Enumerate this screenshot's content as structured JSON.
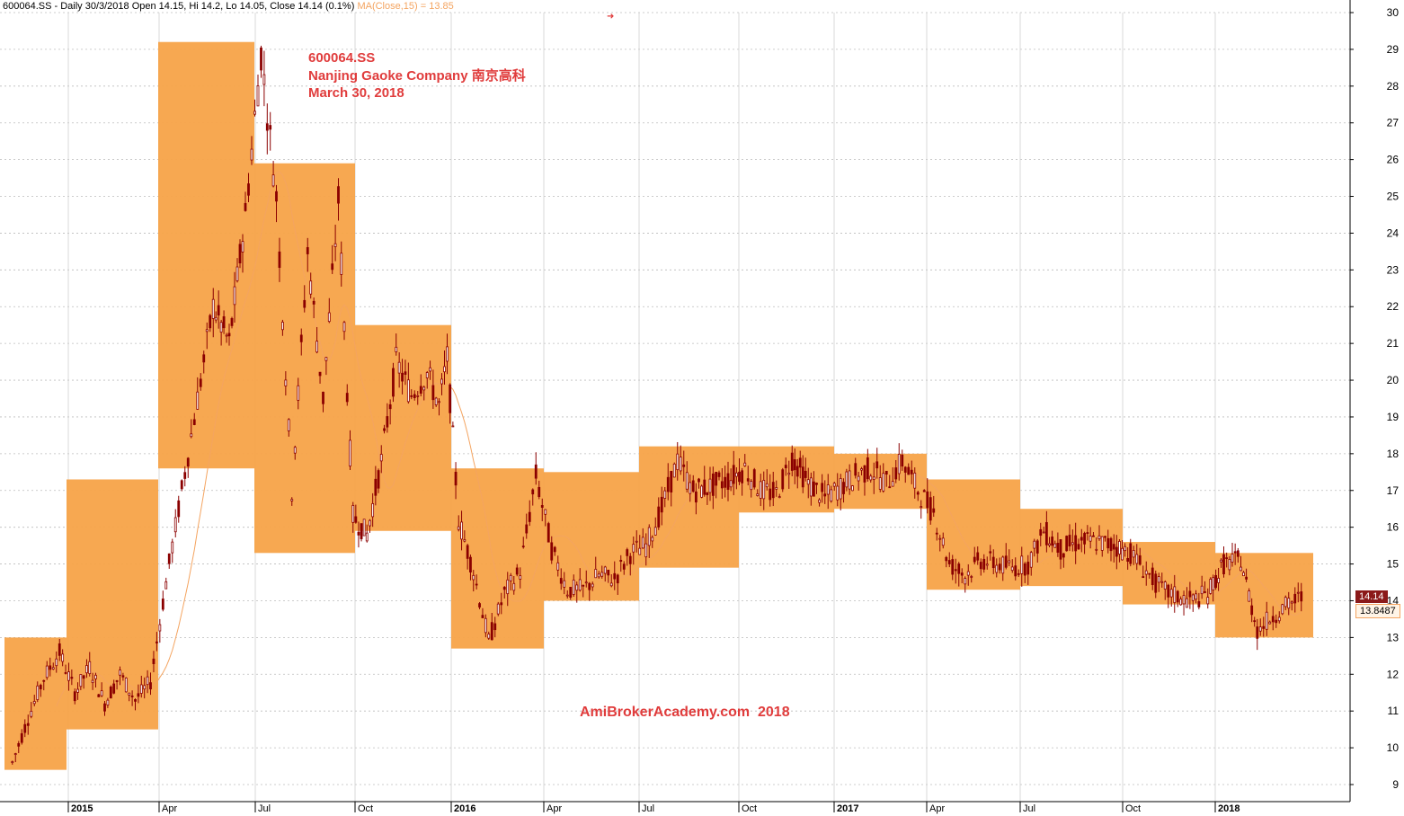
{
  "header": {
    "ticker_info": "600064.SS - Daily 30/3/2018 Open 14.15, Hi 14.2, Lo 14.05, Close 14.14 (0.1%)",
    "ma_info": "MA(Close,15) = 13.85"
  },
  "annotation": {
    "line1": "600064.SS",
    "line2": "Nanjing Gaoke Company 南京高科",
    "line3": "March 30, 2018"
  },
  "watermark": "AmiBrokerAcademy.com  2018",
  "price_tag": "14.14",
  "ma_tag": "13.8487",
  "colors": {
    "candle": "#8b0000",
    "box": "#f7a348",
    "ma": "#f4a460",
    "grid": "#bcbcbc",
    "text_accent": "#e03c3c"
  },
  "chart_data": {
    "type": "candlestick",
    "x_axis_labels": [
      "2015",
      "Apr",
      "Jul",
      "Oct",
      "2016",
      "Apr",
      "Jul",
      "Oct",
      "2017",
      "Apr",
      "Jul",
      "Oct",
      "2018"
    ],
    "y_ticks": [
      9,
      10,
      11,
      12,
      13,
      14,
      15,
      16,
      17,
      18,
      19,
      20,
      21,
      22,
      23,
      24,
      25,
      26,
      27,
      28,
      29,
      30
    ],
    "ylim": [
      8.5,
      30.3
    ],
    "quarter_ranges": [
      {
        "period": "2014 Q4",
        "low": 9.4,
        "high": 13.0
      },
      {
        "period": "2015 Q1",
        "low": 10.5,
        "high": 17.3
      },
      {
        "period": "2015 Q2",
        "low": 17.6,
        "high": 29.2
      },
      {
        "period": "2015 Q3",
        "low": 15.3,
        "high": 25.9
      },
      {
        "period": "2015 Q4",
        "low": 15.9,
        "high": 21.5
      },
      {
        "period": "2016 Q1",
        "low": 12.7,
        "high": 17.6
      },
      {
        "period": "2016 Q2",
        "low": 14.0,
        "high": 17.5
      },
      {
        "period": "2016 Q3",
        "low": 14.9,
        "high": 18.2
      },
      {
        "period": "2016 Q4",
        "low": 16.4,
        "high": 18.2
      },
      {
        "period": "2017 Q1",
        "low": 16.5,
        "high": 18.0
      },
      {
        "period": "2017 Q2",
        "low": 14.3,
        "high": 17.3
      },
      {
        "period": "2017 Q3",
        "low": 14.4,
        "high": 16.5
      },
      {
        "period": "2017 Q4",
        "low": 13.9,
        "high": 15.6
      },
      {
        "period": "2018 Q1",
        "low": 13.0,
        "high": 15.3
      }
    ],
    "price_path": [
      [
        "2014-10",
        9.6
      ],
      [
        "2014-10",
        10.8
      ],
      [
        "2014-11",
        11.9
      ],
      [
        "2014-11",
        12.6
      ],
      [
        "2014-12",
        11.5
      ],
      [
        "2014-12",
        12.2
      ],
      [
        "2015-01",
        11.2
      ],
      [
        "2015-01",
        12.0
      ],
      [
        "2015-02",
        11.3
      ],
      [
        "2015-02",
        11.8
      ],
      [
        "2015-03",
        14.5
      ],
      [
        "2015-03",
        17.0
      ],
      [
        "2015-04",
        19.5
      ],
      [
        "2015-04",
        22.0
      ],
      [
        "2015-05",
        21.0
      ],
      [
        "2015-05",
        24.5
      ],
      [
        "2015-06",
        28.9
      ],
      [
        "2015-06",
        25.0
      ],
      [
        "2015-07",
        17.0
      ],
      [
        "2015-07",
        23.5
      ],
      [
        "2015-08",
        19.5
      ],
      [
        "2015-08",
        24.9
      ],
      [
        "2015-09",
        16.3
      ],
      [
        "2015-09",
        15.8
      ],
      [
        "2015-10",
        17.8
      ],
      [
        "2015-10",
        20.5
      ],
      [
        "2015-11",
        19.6
      ],
      [
        "2015-11",
        20.2
      ],
      [
        "2015-12",
        19.3
      ],
      [
        "2015-12",
        20.6
      ],
      [
        "2016-01",
        16.2
      ],
      [
        "2016-01",
        14.8
      ],
      [
        "2016-02",
        12.9
      ],
      [
        "2016-02",
        14.2
      ],
      [
        "2016-03",
        14.8
      ],
      [
        "2016-03",
        17.4
      ],
      [
        "2016-04",
        15.4
      ],
      [
        "2016-04",
        14.3
      ],
      [
        "2016-05",
        14.3
      ],
      [
        "2016-05",
        14.7
      ],
      [
        "2016-06",
        14.6
      ],
      [
        "2016-06",
        15.3
      ],
      [
        "2016-07",
        15.5
      ],
      [
        "2016-07",
        16.5
      ],
      [
        "2016-08",
        17.8
      ],
      [
        "2016-08",
        17.0
      ],
      [
        "2016-09",
        17.1
      ],
      [
        "2016-09",
        17.3
      ],
      [
        "2016-10",
        17.6
      ],
      [
        "2016-10",
        17.0
      ],
      [
        "2016-11",
        16.9
      ],
      [
        "2016-11",
        17.9
      ],
      [
        "2016-12",
        17.2
      ],
      [
        "2016-12",
        16.8
      ],
      [
        "2017-01",
        17.1
      ],
      [
        "2017-01",
        17.4
      ],
      [
        "2017-02",
        17.6
      ],
      [
        "2017-02",
        17.2
      ],
      [
        "2017-03",
        17.8
      ],
      [
        "2017-03",
        17.0
      ],
      [
        "2017-04",
        16.4
      ],
      [
        "2017-04",
        15.0
      ],
      [
        "2017-05",
        14.7
      ],
      [
        "2017-05",
        15.1
      ],
      [
        "2017-06",
        15.0
      ],
      [
        "2017-06",
        14.9
      ],
      [
        "2017-07",
        15.0
      ],
      [
        "2017-07",
        15.9
      ],
      [
        "2017-08",
        15.4
      ],
      [
        "2017-08",
        15.6
      ],
      [
        "2017-09",
        15.6
      ],
      [
        "2017-09",
        15.5
      ],
      [
        "2017-10",
        15.3
      ],
      [
        "2017-10",
        14.8
      ],
      [
        "2017-11",
        14.3
      ],
      [
        "2017-11",
        14.1
      ],
      [
        "2017-12",
        14.0
      ],
      [
        "2017-12",
        14.2
      ],
      [
        "2018-01",
        15.0
      ],
      [
        "2018-01",
        15.1
      ],
      [
        "2018-02",
        13.2
      ],
      [
        "2018-02",
        13.6
      ],
      [
        "2018-03",
        13.9
      ],
      [
        "2018-03",
        14.14
      ]
    ],
    "last_close": 14.14,
    "ma15": 13.85
  }
}
